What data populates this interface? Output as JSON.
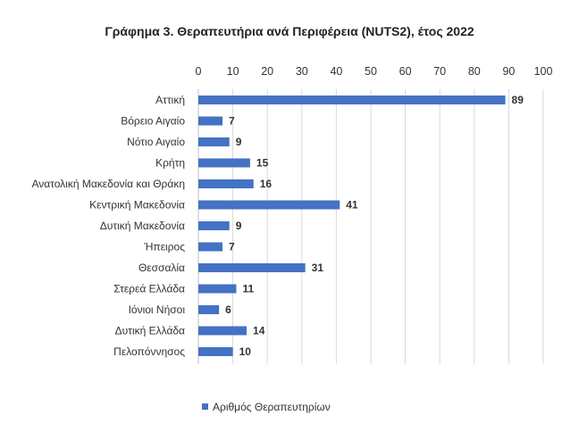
{
  "chart_data": {
    "type": "bar",
    "orientation": "horizontal",
    "title": "Γράφημα 3. Θεραπευτήρια ανά Περιφέρεια (NUTS2), έτος 2022",
    "xlabel": "",
    "ylabel": "",
    "xlim": [
      0,
      100
    ],
    "ticks": [
      0,
      10,
      20,
      30,
      40,
      50,
      60,
      70,
      80,
      90,
      100
    ],
    "axis_position": "top",
    "grid": true,
    "legend_position": "bottom-left",
    "categories": [
      "Αττική",
      "Βόρειο Αιγαίο",
      "Νότιο Αιγαίο",
      "Κρήτη",
      "Ανατολική Μακεδονία και Θράκη",
      "Κεντρική Μακεδονία",
      "Δυτική Μακεδονία",
      "Ήπειρος",
      "Θεσσαλία",
      "Στερεά Ελλάδα",
      "Ιόνιοι Νήσοι",
      "Δυτική Ελλάδα",
      "Πελοπόννησος"
    ],
    "series": [
      {
        "name": "Αριθμός Θεραπευτηρίων",
        "color": "#4472c4",
        "values": [
          89,
          7,
          9,
          15,
          16,
          41,
          9,
          7,
          31,
          11,
          6,
          14,
          10
        ]
      }
    ]
  }
}
